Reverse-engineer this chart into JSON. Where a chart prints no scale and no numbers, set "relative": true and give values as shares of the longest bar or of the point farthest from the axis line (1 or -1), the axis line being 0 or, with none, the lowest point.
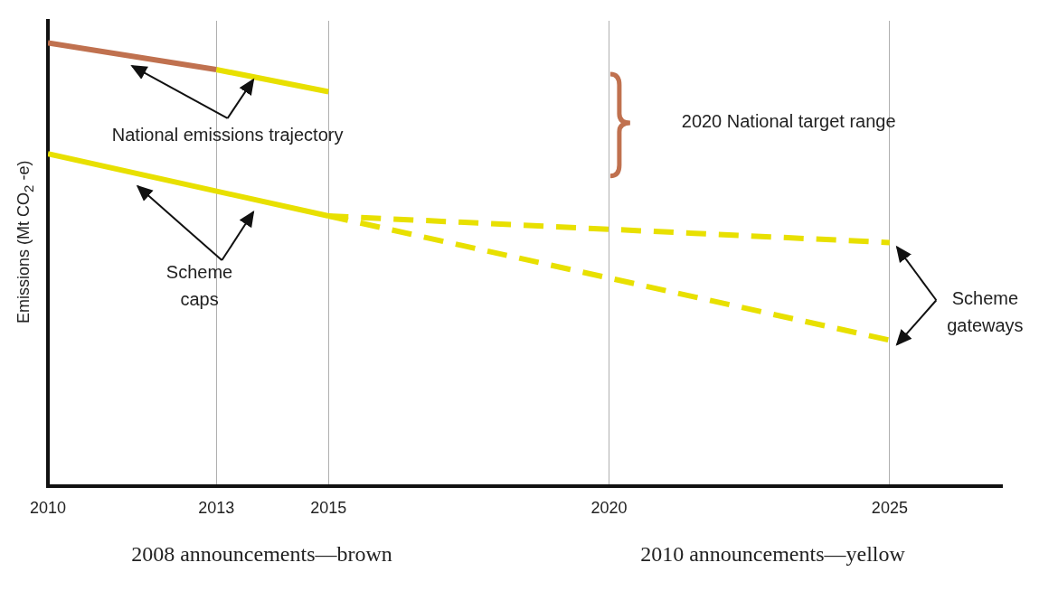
{
  "chart_data": {
    "type": "line",
    "relative": true,
    "ylabel": "Emissions (Mt CO$_{2}$ -e)",
    "xlim": [
      2010,
      2027
    ],
    "xticks": [
      2010,
      2013,
      2015,
      2020,
      2025
    ],
    "grid": "x",
    "legend": false,
    "marker": "none",
    "series": [
      {
        "color": "#c0714f",
        "x": [
          2010,
          2013
        ],
        "values": [
          1,
          0.94
        ],
        "line_style": "solid"
      },
      {
        "color": "#e8e000",
        "x": [
          2013,
          2015
        ],
        "values": [
          0.94,
          0.89
        ],
        "line_style": "solid"
      },
      {
        "color": "#e8e000",
        "x": [
          2010,
          2015
        ],
        "values": [
          0.75,
          0.61
        ],
        "line_style": "solid"
      },
      {
        "color": "#e8e000",
        "x": [
          2015,
          2020,
          2025
        ],
        "values": [
          0.61,
          0.58,
          0.55
        ],
        "line_style": "dashed"
      },
      {
        "color": "#e8e000",
        "x": [
          2015,
          2020,
          2025
        ],
        "values": [
          0.61,
          0.47,
          0.33
        ],
        "line_style": "dashed"
      }
    ],
    "annotations": [
      "National emissions trajectory",
      "Scheme caps",
      "2020 National target range",
      "Scheme gateways",
      "2008 announcements—brown",
      "2010 announcements—yellow"
    ]
  }
}
